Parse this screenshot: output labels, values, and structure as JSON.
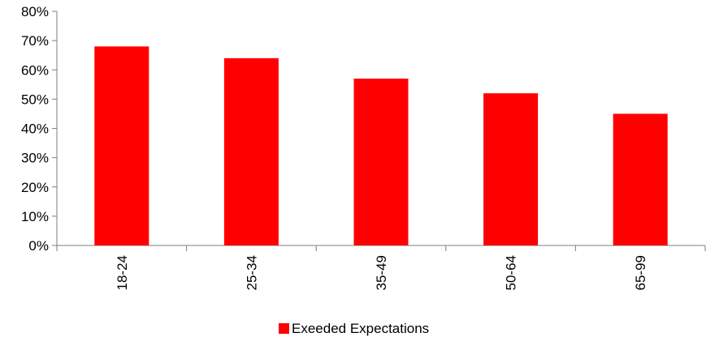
{
  "chart_data": {
    "type": "bar",
    "categories": [
      "18-24",
      "25-34",
      "35-49",
      "50-64",
      "65-99"
    ],
    "series": [
      {
        "name": "Exeeded Expectations",
        "values": [
          0.68,
          0.64,
          0.57,
          0.52,
          0.45
        ],
        "color": "#ff0000"
      }
    ],
    "ylim": [
      0,
      0.8
    ],
    "yticks": [
      0,
      0.1,
      0.2,
      0.3,
      0.4,
      0.5,
      0.6,
      0.7,
      0.8
    ],
    "ytick_labels": [
      "0%",
      "10%",
      "20%",
      "30%",
      "40%",
      "50%",
      "60%",
      "70%",
      "80%"
    ],
    "grid": false,
    "legend_position": "bottom",
    "category_label_orientation": "vertical"
  }
}
